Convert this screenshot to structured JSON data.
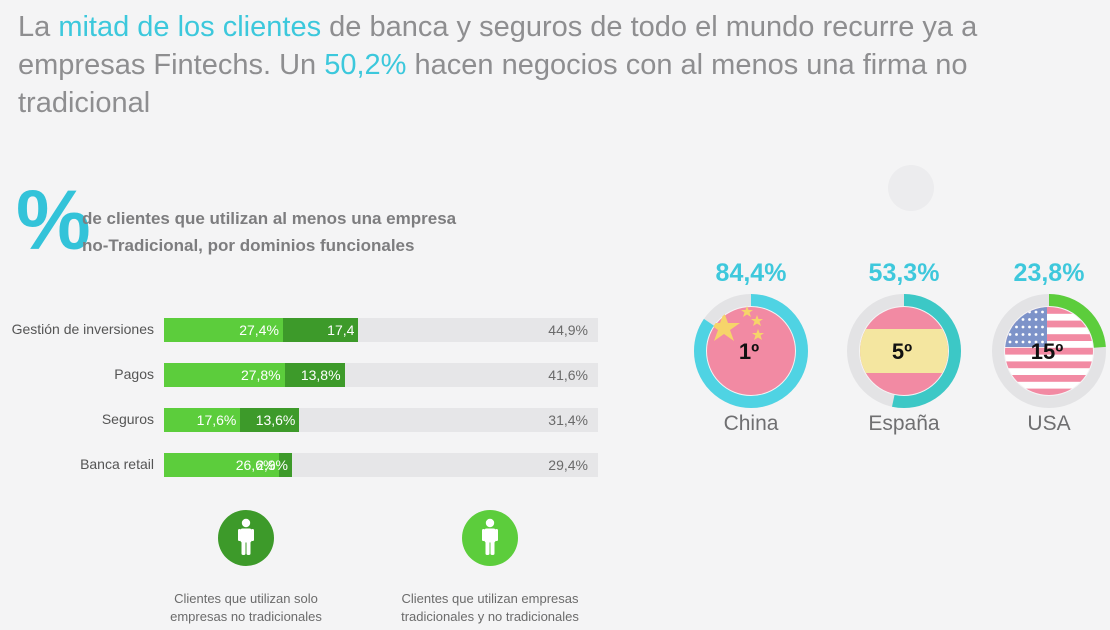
{
  "headline": {
    "part1": "La ",
    "hl1": "mitad de los clientes",
    "part2": " de banca y seguros de todo el mundo recurre ya a empresas Fintechs. Un ",
    "hl2": "50,2%",
    "part3": " hacen negocios con al menos una firma no tradicional"
  },
  "section": {
    "symbol": "%",
    "subtitle_line1": "de clientes que utilizan al menos una empresa",
    "subtitle_line2": "no-Tradicional, por dominios funcionales"
  },
  "colors": {
    "light_green": "#5ccd3c",
    "dark_green": "#3d9a2a",
    "cyan": "#3ec8dc",
    "track": "#e6e6e8"
  },
  "chart_data": [
    {
      "type": "bar",
      "stacked": true,
      "orientation": "horizontal",
      "categories": [
        "Gestión de inversiones",
        "Pagos",
        "Seguros",
        "Banca retail"
      ],
      "series": [
        {
          "name": "Clientes que utilizan empresas tradicionales y no tradicionales",
          "values": [
            27.4,
            27.8,
            17.6,
            26.6
          ],
          "labels": [
            "27,4%",
            "27,8%",
            "17,6%",
            "26,6%"
          ]
        },
        {
          "name": "Clientes que utilizan solo empresas no tradicionales",
          "values": [
            17.4,
            13.8,
            13.6,
            2.9
          ],
          "labels": [
            "17,4",
            "13,8%",
            "13,6%",
            "2,9%"
          ]
        }
      ],
      "totals": [
        "44,9%",
        "41,6%",
        "31,4%",
        "29,4%"
      ],
      "xlim": [
        0,
        100
      ]
    },
    {
      "type": "pie",
      "categories": [
        "China",
        "España",
        "USA"
      ],
      "values": [
        84.4,
        53.3,
        23.8
      ],
      "value_labels": [
        "84,4%",
        "53,3%",
        "23,8%"
      ],
      "ranks": [
        "1º",
        "5º",
        "15º"
      ]
    }
  ],
  "legend": [
    {
      "text_line1": "Clientes que utilizan solo",
      "text_line2": "empresas no tradicionales",
      "color": "#3d9a2a",
      "icon": "person-icon"
    },
    {
      "text_line1": "Clientes que utilizan empresas",
      "text_line2": "tradicionales y no tradicionales",
      "color": "#5ccd3c",
      "icon": "person-icon"
    }
  ]
}
